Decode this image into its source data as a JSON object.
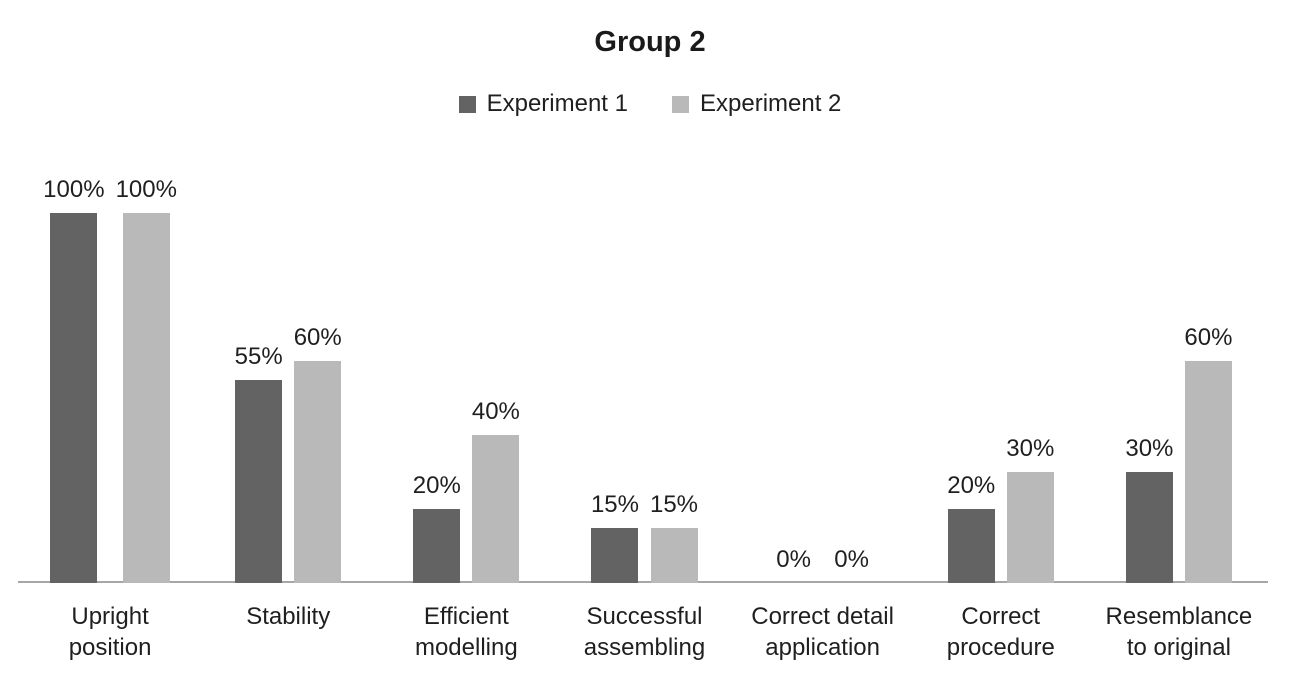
{
  "chart_data": {
    "type": "bar",
    "title": "Group 2",
    "categories": [
      "Upright position",
      "Stability",
      "Efficient modelling",
      "Successful assembling",
      "Correct detail application",
      "Correct procedure",
      "Resemblance to original"
    ],
    "series": [
      {
        "name": "Experiment 1",
        "color": "#636363",
        "values": [
          100,
          55,
          20,
          15,
          0,
          20,
          30
        ],
        "labels": [
          "100%",
          "55%",
          "20%",
          "15%",
          "0%",
          "20%",
          "30%"
        ]
      },
      {
        "name": "Experiment 2",
        "color": "#b9b9b9",
        "values": [
          100,
          60,
          40,
          15,
          0,
          30,
          60
        ],
        "labels": [
          "100%",
          "60%",
          "40%",
          "15%",
          "0%",
          "30%",
          "60%"
        ]
      }
    ],
    "ylim": [
      0,
      100
    ],
    "grid": false,
    "legend_position": "top",
    "value_label_format": "percent",
    "axis_line_color": "#a6a6a6",
    "text_color": "#1f1f1f"
  }
}
